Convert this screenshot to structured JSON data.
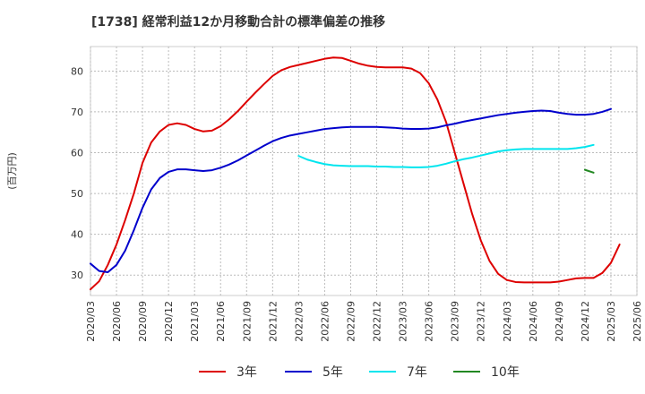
{
  "chart_data": {
    "type": "line",
    "title": "[1738]  経常利益12か月移動合計の標準偏差の推移",
    "xlabel": "",
    "ylabel": "(百万円)",
    "ylim": [
      25,
      86
    ],
    "yticks": [
      30,
      40,
      50,
      60,
      70,
      80
    ],
    "x_start": "2020/03",
    "x_end": "2025/06",
    "x_ticks": [
      "2020/03",
      "2020/06",
      "2020/09",
      "2020/12",
      "2021/03",
      "2021/06",
      "2021/09",
      "2021/12",
      "2022/03",
      "2022/06",
      "2022/09",
      "2022/12",
      "2023/03",
      "2023/06",
      "2023/09",
      "2023/12",
      "2024/03",
      "2024/06",
      "2024/09",
      "2024/12",
      "2025/03",
      "2025/06"
    ],
    "grid": true,
    "legend_position": "bottom",
    "series": [
      {
        "name": "3年",
        "color": "#dd0000",
        "start": "2020/03",
        "values": [
          26.5,
          28.5,
          32.5,
          37.5,
          43.5,
          50,
          57.5,
          62.5,
          65.2,
          66.8,
          67.2,
          66.8,
          65.8,
          65.2,
          65.4,
          66.5,
          68.2,
          70.2,
          72.5,
          74.7,
          76.8,
          78.8,
          80.2,
          81.0,
          81.5,
          82.0,
          82.5,
          83.0,
          83.3,
          83.2,
          82.5,
          81.8,
          81.3,
          81.0,
          80.9,
          80.9,
          80.9,
          80.6,
          79.5,
          77.0,
          73.0,
          67.5,
          60.0,
          52.5,
          45.0,
          38.5,
          33.5,
          30.3,
          28.8,
          28.3,
          28.2,
          28.2,
          28.2,
          28.2,
          28.4,
          28.8,
          29.2,
          29.3,
          29.3,
          30.5,
          33.0,
          37.5
        ]
      },
      {
        "name": "5年",
        "color": "#0000cc",
        "start": "2020/03",
        "values": [
          32.8,
          31.0,
          30.7,
          32.5,
          36.0,
          41.0,
          46.5,
          51.0,
          53.8,
          55.3,
          55.9,
          55.9,
          55.7,
          55.5,
          55.7,
          56.3,
          57.1,
          58.1,
          59.3,
          60.5,
          61.7,
          62.8,
          63.6,
          64.2,
          64.6,
          65.0,
          65.4,
          65.8,
          66.0,
          66.2,
          66.3,
          66.3,
          66.3,
          66.3,
          66.2,
          66.1,
          65.9,
          65.8,
          65.8,
          65.9,
          66.2,
          66.7,
          67.1,
          67.6,
          68.0,
          68.4,
          68.8,
          69.2,
          69.5,
          69.8,
          70.0,
          70.2,
          70.3,
          70.2,
          69.8,
          69.5,
          69.3,
          69.3,
          69.5,
          70.0,
          70.7
        ]
      },
      {
        "name": "7年",
        "color": "#00e5ee",
        "start": "2022/03",
        "values": [
          59.2,
          58.3,
          57.7,
          57.2,
          56.9,
          56.8,
          56.7,
          56.7,
          56.7,
          56.6,
          56.6,
          56.5,
          56.5,
          56.4,
          56.4,
          56.5,
          56.8,
          57.3,
          57.9,
          58.4,
          58.8,
          59.3,
          59.8,
          60.3,
          60.6,
          60.8,
          60.9,
          60.9,
          60.9,
          60.9,
          60.9,
          60.9,
          61.1,
          61.4,
          61.9
        ]
      },
      {
        "name": "10年",
        "color": "#228822",
        "start": "2024/12",
        "values": [
          55.8,
          55.1
        ]
      }
    ]
  }
}
